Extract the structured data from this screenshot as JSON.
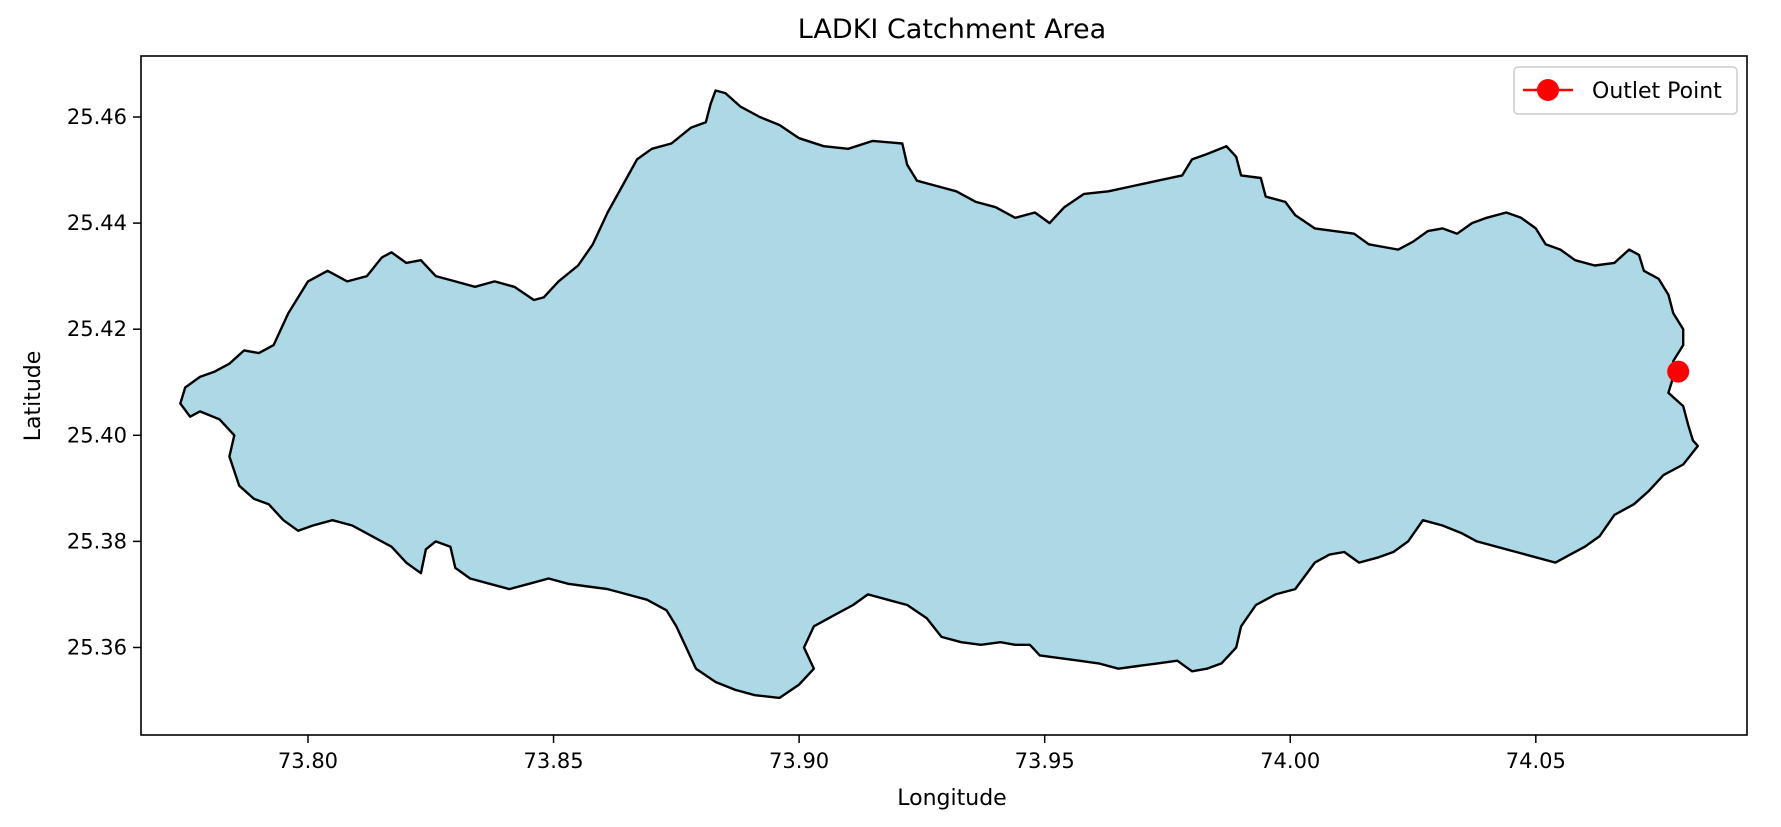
{
  "title": "LADKI Catchment Area",
  "axes": {
    "xlabel": "Longitude",
    "ylabel": "Latitude",
    "xlim": [
      73.766,
      74.093
    ],
    "ylim": [
      25.3435,
      25.4715
    ],
    "xticks": [
      73.8,
      73.85,
      73.9,
      73.95,
      74.0,
      74.05
    ],
    "yticks": [
      25.36,
      25.38,
      25.4,
      25.42,
      25.44,
      25.46
    ],
    "xtick_labels": [
      "73.80",
      "73.85",
      "73.90",
      "73.95",
      "74.00",
      "74.05"
    ],
    "ytick_labels": [
      "25.36",
      "25.38",
      "25.40",
      "25.42",
      "25.44",
      "25.46"
    ],
    "grid": false
  },
  "catchment": {
    "fill_color": "#add8e6",
    "edge_color": "#000000",
    "boundary": [
      [
        73.781,
        25.412
      ],
      [
        73.784,
        25.4135
      ],
      [
        73.787,
        25.416
      ],
      [
        73.79,
        25.4155
      ],
      [
        73.793,
        25.417
      ],
      [
        73.796,
        25.423
      ],
      [
        73.8,
        25.429
      ],
      [
        73.804,
        25.431
      ],
      [
        73.808,
        25.429
      ],
      [
        73.812,
        25.43
      ],
      [
        73.815,
        25.4335
      ],
      [
        73.817,
        25.4345
      ],
      [
        73.82,
        25.4325
      ],
      [
        73.823,
        25.433
      ],
      [
        73.826,
        25.43
      ],
      [
        73.83,
        25.429
      ],
      [
        73.834,
        25.428
      ],
      [
        73.838,
        25.429
      ],
      [
        73.842,
        25.428
      ],
      [
        73.846,
        25.4255
      ],
      [
        73.848,
        25.426
      ],
      [
        73.851,
        25.429
      ],
      [
        73.855,
        25.432
      ],
      [
        73.858,
        25.436
      ],
      [
        73.861,
        25.442
      ],
      [
        73.864,
        25.447
      ],
      [
        73.867,
        25.452
      ],
      [
        73.87,
        25.454
      ],
      [
        73.874,
        25.455
      ],
      [
        73.878,
        25.458
      ],
      [
        73.881,
        25.459
      ],
      [
        73.882,
        25.4625
      ],
      [
        73.883,
        25.465
      ],
      [
        73.885,
        25.4645
      ],
      [
        73.888,
        25.462
      ],
      [
        73.892,
        25.46
      ],
      [
        73.896,
        25.4585
      ],
      [
        73.9,
        25.456
      ],
      [
        73.905,
        25.4545
      ],
      [
        73.91,
        25.454
      ],
      [
        73.915,
        25.4555
      ],
      [
        73.921,
        25.455
      ],
      [
        73.922,
        25.451
      ],
      [
        73.924,
        25.448
      ],
      [
        73.928,
        25.447
      ],
      [
        73.932,
        25.446
      ],
      [
        73.936,
        25.444
      ],
      [
        73.94,
        25.443
      ],
      [
        73.944,
        25.441
      ],
      [
        73.948,
        25.442
      ],
      [
        73.951,
        25.44
      ],
      [
        73.954,
        25.443
      ],
      [
        73.958,
        25.4455
      ],
      [
        73.963,
        25.446
      ],
      [
        73.968,
        25.447
      ],
      [
        73.973,
        25.448
      ],
      [
        73.978,
        25.449
      ],
      [
        73.98,
        25.452
      ],
      [
        73.983,
        25.453
      ],
      [
        73.987,
        25.4545
      ],
      [
        73.989,
        25.4525
      ],
      [
        73.99,
        25.449
      ],
      [
        73.994,
        25.4485
      ],
      [
        73.995,
        25.445
      ],
      [
        73.999,
        25.444
      ],
      [
        74.001,
        25.4415
      ],
      [
        74.005,
        25.439
      ],
      [
        74.009,
        25.4385
      ],
      [
        74.013,
        25.438
      ],
      [
        74.016,
        25.436
      ],
      [
        74.019,
        25.4355
      ],
      [
        74.022,
        25.435
      ],
      [
        74.025,
        25.4365
      ],
      [
        74.028,
        25.4385
      ],
      [
        74.031,
        25.439
      ],
      [
        74.034,
        25.438
      ],
      [
        74.037,
        25.44
      ],
      [
        74.04,
        25.441
      ],
      [
        74.044,
        25.442
      ],
      [
        74.047,
        25.441
      ],
      [
        74.05,
        25.439
      ],
      [
        74.052,
        25.436
      ],
      [
        74.055,
        25.435
      ],
      [
        74.058,
        25.433
      ],
      [
        74.062,
        25.432
      ],
      [
        74.066,
        25.4325
      ],
      [
        74.069,
        25.435
      ],
      [
        74.071,
        25.434
      ],
      [
        74.072,
        25.431
      ],
      [
        74.075,
        25.4295
      ],
      [
        74.077,
        25.4265
      ],
      [
        74.078,
        25.423
      ],
      [
        74.08,
        25.42
      ],
      [
        74.08,
        25.417
      ],
      [
        74.078,
        25.414
      ],
      [
        74.078,
        25.411
      ],
      [
        74.077,
        25.408
      ],
      [
        74.08,
        25.4055
      ],
      [
        74.081,
        25.402
      ],
      [
        74.082,
        25.399
      ],
      [
        74.083,
        25.398
      ],
      [
        74.08,
        25.3945
      ],
      [
        74.076,
        25.3925
      ],
      [
        74.073,
        25.3895
      ],
      [
        74.07,
        25.387
      ],
      [
        74.066,
        25.385
      ],
      [
        74.063,
        25.381
      ],
      [
        74.06,
        25.379
      ],
      [
        74.057,
        25.3775
      ],
      [
        74.054,
        25.376
      ],
      [
        74.05,
        25.377
      ],
      [
        74.046,
        25.378
      ],
      [
        74.042,
        25.379
      ],
      [
        74.038,
        25.38
      ],
      [
        74.035,
        25.3815
      ],
      [
        74.031,
        25.383
      ],
      [
        74.027,
        25.384
      ],
      [
        74.024,
        25.38
      ],
      [
        74.021,
        25.378
      ],
      [
        74.018,
        25.377
      ],
      [
        74.014,
        25.376
      ],
      [
        74.011,
        25.378
      ],
      [
        74.008,
        25.3775
      ],
      [
        74.005,
        25.376
      ],
      [
        74.001,
        25.371
      ],
      [
        73.997,
        25.37
      ],
      [
        73.993,
        25.368
      ],
      [
        73.99,
        25.364
      ],
      [
        73.989,
        25.36
      ],
      [
        73.986,
        25.357
      ],
      [
        73.983,
        25.356
      ],
      [
        73.98,
        25.3555
      ],
      [
        73.977,
        25.3575
      ],
      [
        73.973,
        25.357
      ],
      [
        73.969,
        25.3565
      ],
      [
        73.965,
        25.356
      ],
      [
        73.961,
        25.357
      ],
      [
        73.957,
        25.3575
      ],
      [
        73.953,
        25.358
      ],
      [
        73.949,
        25.3585
      ],
      [
        73.947,
        25.3605
      ],
      [
        73.944,
        25.3605
      ],
      [
        73.941,
        25.361
      ],
      [
        73.937,
        25.3605
      ],
      [
        73.933,
        25.361
      ],
      [
        73.929,
        25.362
      ],
      [
        73.926,
        25.3655
      ],
      [
        73.922,
        25.368
      ],
      [
        73.918,
        25.369
      ],
      [
        73.914,
        25.37
      ],
      [
        73.911,
        25.368
      ],
      [
        73.907,
        25.366
      ],
      [
        73.903,
        25.364
      ],
      [
        73.901,
        25.36
      ],
      [
        73.903,
        25.356
      ],
      [
        73.9,
        25.353
      ],
      [
        73.896,
        25.3505
      ],
      [
        73.891,
        25.351
      ],
      [
        73.887,
        25.352
      ],
      [
        73.883,
        25.3535
      ],
      [
        73.879,
        25.356
      ],
      [
        73.877,
        25.36
      ],
      [
        73.875,
        25.364
      ],
      [
        73.873,
        25.367
      ],
      [
        73.869,
        25.369
      ],
      [
        73.865,
        25.37
      ],
      [
        73.861,
        25.371
      ],
      [
        73.857,
        25.3715
      ],
      [
        73.853,
        25.372
      ],
      [
        73.849,
        25.373
      ],
      [
        73.845,
        25.372
      ],
      [
        73.841,
        25.371
      ],
      [
        73.837,
        25.372
      ],
      [
        73.833,
        25.373
      ],
      [
        73.83,
        25.375
      ],
      [
        73.829,
        25.379
      ],
      [
        73.826,
        25.38
      ],
      [
        73.824,
        25.3785
      ],
      [
        73.823,
        25.374
      ],
      [
        73.82,
        25.376
      ],
      [
        73.817,
        25.379
      ],
      [
        73.813,
        25.381
      ],
      [
        73.809,
        25.383
      ],
      [
        73.805,
        25.384
      ],
      [
        73.801,
        25.383
      ],
      [
        73.798,
        25.382
      ],
      [
        73.795,
        25.384
      ],
      [
        73.792,
        25.387
      ],
      [
        73.789,
        25.388
      ],
      [
        73.786,
        25.3905
      ],
      [
        73.784,
        25.396
      ],
      [
        73.785,
        25.4
      ],
      [
        73.782,
        25.403
      ],
      [
        73.778,
        25.4045
      ],
      [
        73.776,
        25.4035
      ],
      [
        73.774,
        25.406
      ],
      [
        73.775,
        25.409
      ],
      [
        73.778,
        25.411
      ],
      [
        73.781,
        25.412
      ]
    ]
  },
  "outlet": {
    "lon": 74.079,
    "lat": 25.412,
    "color": "#ff0000",
    "label": "Outlet Point"
  },
  "legend": {
    "placement": "top-right",
    "entries": [
      "Outlet Point"
    ]
  }
}
